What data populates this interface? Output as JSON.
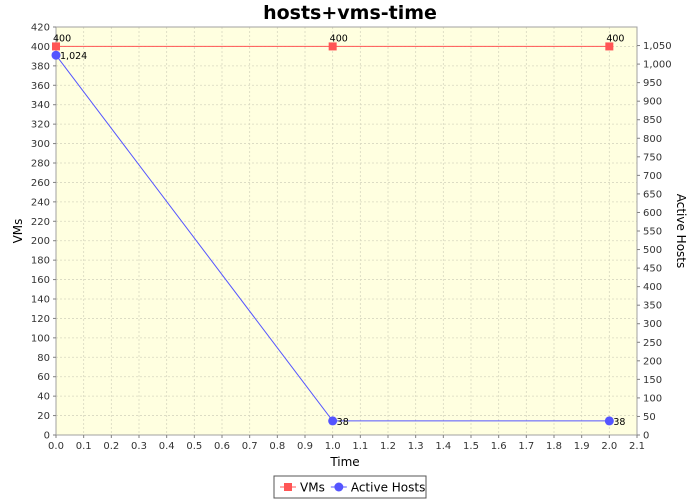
{
  "chart_data": {
    "type": "line",
    "title": "hosts+vms-time",
    "xlabel": "Time",
    "ylabel_left": "VMs",
    "ylabel_right": "Active Hosts",
    "xlim": [
      0,
      2.1
    ],
    "ylim_left": [
      0,
      420
    ],
    "ylim_right": [
      0,
      1100
    ],
    "x_ticks": [
      "0.0",
      "0.1",
      "0.2",
      "0.3",
      "0.4",
      "0.5",
      "0.6",
      "0.7",
      "0.8",
      "0.9",
      "1.0",
      "1.1",
      "1.2",
      "1.3",
      "1.4",
      "1.5",
      "1.6",
      "1.7",
      "1.8",
      "1.9",
      "2.0",
      "2.1"
    ],
    "y_left_ticks": [
      "0",
      "20",
      "40",
      "60",
      "80",
      "100",
      "120",
      "140",
      "160",
      "180",
      "200",
      "220",
      "240",
      "260",
      "280",
      "300",
      "320",
      "340",
      "360",
      "380",
      "400",
      "420"
    ],
    "y_right_ticks": [
      "0",
      "50",
      "100",
      "150",
      "200",
      "250",
      "300",
      "350",
      "400",
      "450",
      "500",
      "550",
      "600",
      "650",
      "700",
      "750",
      "800",
      "850",
      "900",
      "950",
      "1,000",
      "1,050"
    ],
    "grid": true,
    "legend_position": "bottom",
    "series": [
      {
        "name": "VMs",
        "axis": "left",
        "color": "#ff5555",
        "marker": "square",
        "x": [
          0.0,
          1.0,
          2.0
        ],
        "values": [
          400,
          400,
          400
        ],
        "labels": [
          "400",
          "400",
          "400"
        ]
      },
      {
        "name": "Active Hosts",
        "axis": "right",
        "color": "#5555ff",
        "marker": "circle",
        "x": [
          0.0,
          1.0,
          2.0
        ],
        "values": [
          1024,
          38,
          38
        ],
        "labels": [
          "1,024",
          "38",
          "38"
        ]
      }
    ]
  },
  "colors": {
    "plot_background": "#ffffe0",
    "grid": "#d8d8c0"
  }
}
